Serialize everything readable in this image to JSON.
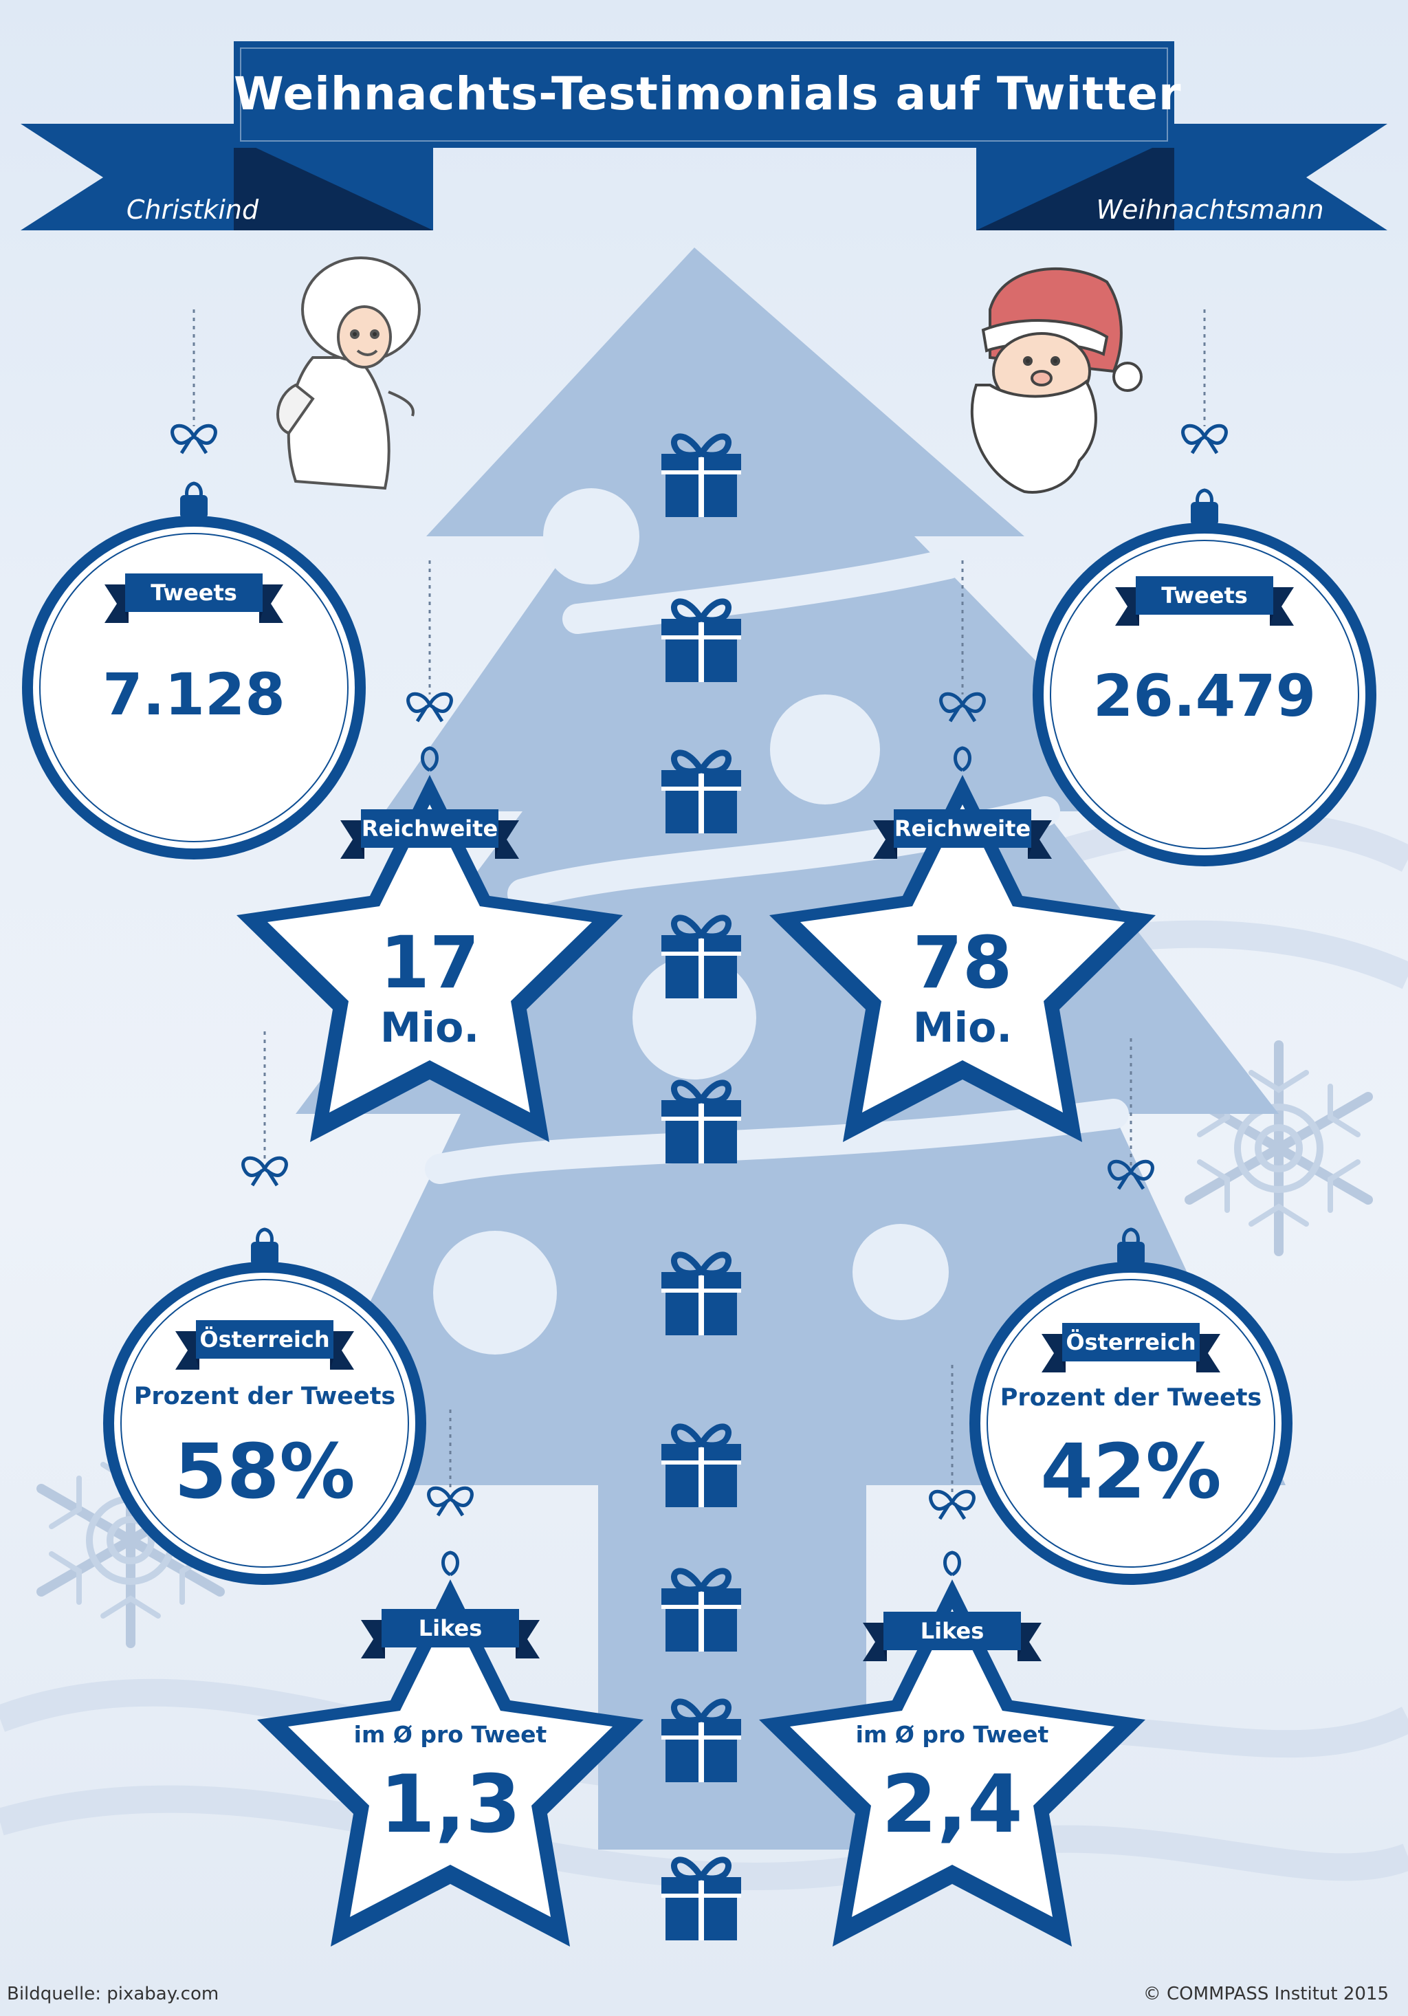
{
  "header": {
    "title": "Weihnachts-Testimonials auf Twitter",
    "left_label": "Christkind",
    "right_label": "Weihnachtsmann"
  },
  "christkind": {
    "tweets": {
      "label": "Tweets",
      "value": "7.128"
    },
    "reach": {
      "label": "Reichweite",
      "value": "17",
      "unit": "Mio."
    },
    "austria": {
      "label": "Österreich",
      "subtitle": "Prozent der Tweets",
      "value": "58%"
    },
    "likes": {
      "label": "Likes",
      "subtitle": "im Ø pro Tweet",
      "value": "1,3"
    }
  },
  "weihnachtsmann": {
    "tweets": {
      "label": "Tweets",
      "value": "26.479"
    },
    "reach": {
      "label": "Reichweite",
      "value": "78",
      "unit": "Mio."
    },
    "austria": {
      "label": "Österreich",
      "subtitle": "Prozent der Tweets",
      "value": "42%"
    },
    "likes": {
      "label": "Likes",
      "subtitle": "im Ø pro Tweet",
      "value": "2,4"
    }
  },
  "footer": {
    "source": "Bildquelle: pixabay.com",
    "copyright": "© COMMPASS Institut 2015"
  },
  "colors": {
    "primary_blue": "#0e4e93",
    "dark_navy": "#0a2a55",
    "tree_blue": "#a9c1de"
  }
}
